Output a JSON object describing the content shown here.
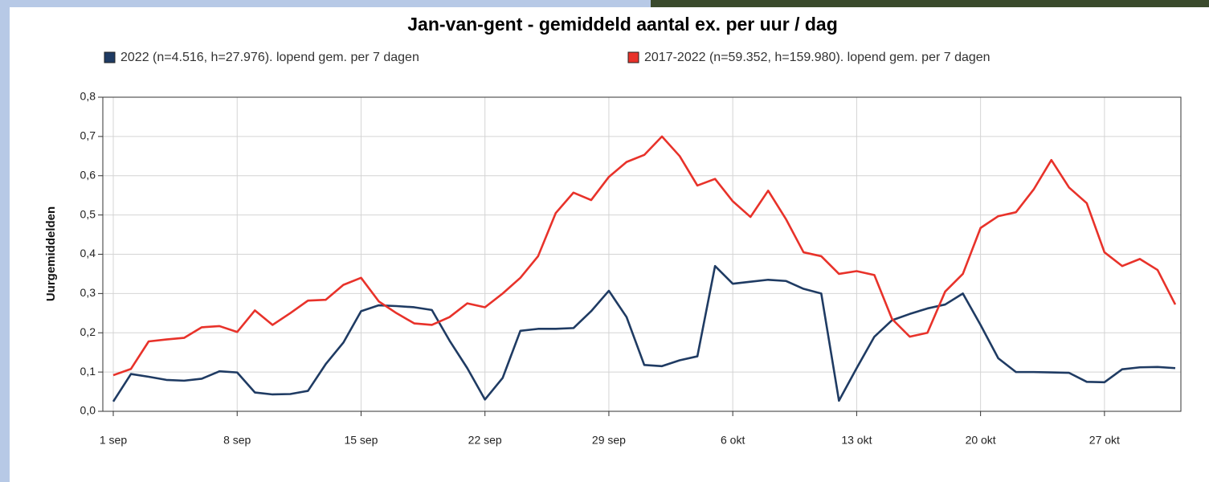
{
  "chart_data": {
    "type": "line",
    "title": "Jan-van-gent - gemiddeld aantal ex. per uur / dag",
    "y_label": "Uurgemiddelden",
    "categories": [
      "1 sep",
      null,
      null,
      null,
      null,
      null,
      null,
      "8 sep",
      null,
      null,
      null,
      null,
      null,
      null,
      "15 sep",
      null,
      null,
      null,
      null,
      null,
      null,
      "22 sep",
      null,
      null,
      null,
      null,
      null,
      null,
      "29 sep",
      null,
      null,
      null,
      null,
      null,
      null,
      "6 okt",
      null,
      null,
      null,
      null,
      null,
      null,
      "13 okt",
      null,
      null,
      null,
      null,
      null,
      null,
      "20 okt",
      null,
      null,
      null,
      null,
      null,
      null,
      "27 okt",
      null,
      null,
      null,
      null
    ],
    "series": [
      {
        "name": "2022 (n=4.516, h=27.976). lopend gem. per 7 dagen",
        "color": "#1f3b63",
        "values": [
          0.025,
          0.095,
          0.088,
          0.08,
          0.078,
          0.083,
          0.102,
          0.099,
          0.048,
          0.043,
          0.044,
          0.052,
          0.12,
          0.175,
          0.255,
          0.27,
          0.268,
          0.265,
          0.258,
          0.18,
          0.11,
          0.03,
          0.085,
          0.205,
          0.21,
          0.21,
          0.212,
          0.255,
          0.307,
          0.24,
          0.118,
          0.115,
          0.13,
          0.14,
          0.37,
          0.325,
          0.33,
          0.335,
          0.332,
          0.312,
          0.3,
          0.027,
          0.11,
          0.19,
          0.232,
          0.248,
          0.262,
          0.272,
          0.3,
          0.22,
          0.135,
          0.1,
          0.1,
          0.099,
          0.098,
          0.075,
          0.074,
          0.107,
          0.112,
          0.113,
          0.11
        ]
      },
      {
        "name": "2017-2022 (n=59.352, h=159.980). lopend gem. per 7 dagen",
        "color": "#e8322a",
        "values": [
          0.092,
          0.108,
          0.178,
          0.183,
          0.187,
          0.214,
          0.217,
          0.202,
          0.257,
          0.22,
          0.25,
          0.282,
          0.284,
          0.322,
          0.34,
          0.28,
          0.25,
          0.224,
          0.22,
          0.24,
          0.275,
          0.265,
          0.3,
          0.34,
          0.395,
          0.505,
          0.557,
          0.538,
          0.597,
          0.635,
          0.653,
          0.7,
          0.65,
          0.575,
          0.592,
          0.535,
          0.495,
          0.562,
          0.49,
          0.405,
          0.395,
          0.35,
          0.357,
          0.347,
          0.235,
          0.19,
          0.2,
          0.305,
          0.35,
          0.467,
          0.497,
          0.507,
          0.565,
          0.64,
          0.57,
          0.53,
          0.405,
          0.37,
          0.388,
          0.36,
          0.272
        ]
      }
    ],
    "ylim": [
      0,
      0.8
    ],
    "yticks": [
      {
        "value": 0,
        "label": "0,0"
      },
      {
        "value": 0.1,
        "label": "0,1"
      },
      {
        "value": 0.2,
        "label": "0,2"
      },
      {
        "value": 0.3,
        "label": "0,3"
      },
      {
        "value": 0.4,
        "label": "0,4"
      },
      {
        "value": 0.5,
        "label": "0,5"
      },
      {
        "value": 0.6,
        "label": "0,6"
      },
      {
        "value": 0.7,
        "label": "0,7"
      },
      {
        "value": 0.8,
        "label": "0,8"
      }
    ],
    "grid": true
  }
}
